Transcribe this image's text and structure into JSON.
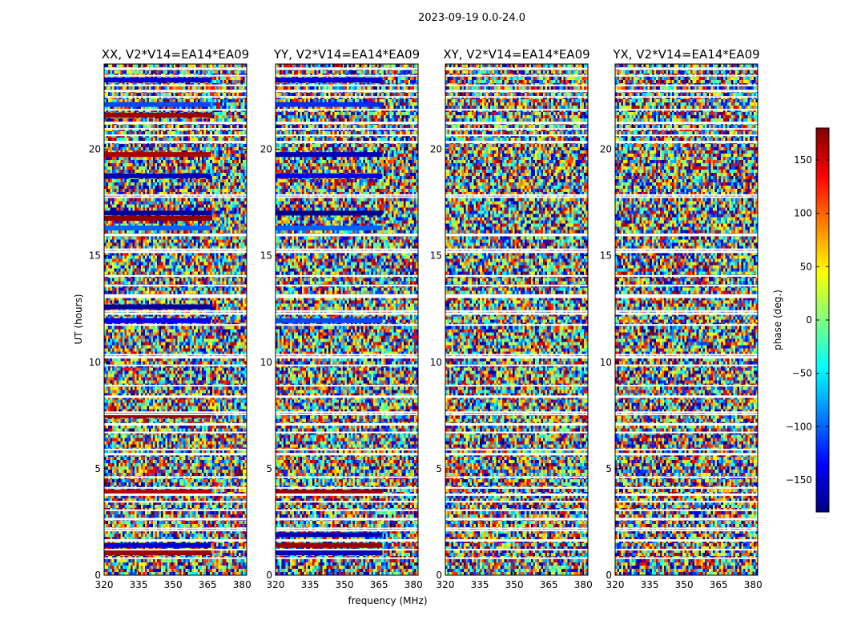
{
  "figure": {
    "title": "2023-09-19 0.0-24.0",
    "xlabel": "frequency (MHz)",
    "ylabel": "UT (hours)",
    "colorbar_label": "phase (deg.)",
    "colorbar_footer": "......"
  },
  "chart_data": {
    "type": "heatmap",
    "title": "2023-09-19 0.0-24.0",
    "xlabel": "frequency (MHz)",
    "ylabel": "UT (hours)",
    "xlim": [
      320,
      382
    ],
    "ylim": [
      0,
      24
    ],
    "xticks": [
      320,
      335,
      350,
      365,
      380
    ],
    "yticks": [
      0,
      5,
      10,
      15,
      20
    ],
    "colormap": "jet",
    "colorbar": {
      "label": "phase (deg.)",
      "range": [
        -180,
        180
      ],
      "ticks": [
        -150,
        -100,
        -50,
        0,
        50,
        100,
        150
      ]
    },
    "grid": false,
    "panels": [
      {
        "title": "XX, V2*V14=EA14*EA09",
        "coherent_bands": [
          {
            "ut": 23.25,
            "phase": -150
          },
          {
            "ut": 22.1,
            "phase": -110
          },
          {
            "ut": 21.6,
            "phase": 170
          },
          {
            "ut": 19.75,
            "phase": 165
          },
          {
            "ut": 18.75,
            "phase": -160
          },
          {
            "ut": 17.0,
            "phase": -170
          },
          {
            "ut": 16.75,
            "phase": 175
          },
          {
            "ut": 16.3,
            "phase": -100
          },
          {
            "ut": 12.6,
            "phase": -170
          },
          {
            "ut": 11.95,
            "phase": -140
          },
          {
            "ut": 7.5,
            "phase": 170
          },
          {
            "ut": 3.9,
            "phase": 160
          },
          {
            "ut": 1.4,
            "phase": -150
          },
          {
            "ut": 1.05,
            "phase": 170
          }
        ]
      },
      {
        "title": "YY, V2*V14=EA14*EA09",
        "coherent_bands": [
          {
            "ut": 23.25,
            "phase": -150
          },
          {
            "ut": 22.1,
            "phase": -120
          },
          {
            "ut": 19.75,
            "phase": -160
          },
          {
            "ut": 18.75,
            "phase": -140
          },
          {
            "ut": 17.0,
            "phase": -175
          },
          {
            "ut": 16.3,
            "phase": -100
          },
          {
            "ut": 11.95,
            "phase": -110
          },
          {
            "ut": 3.9,
            "phase": 170
          },
          {
            "ut": 1.9,
            "phase": -160
          },
          {
            "ut": 1.4,
            "phase": 170
          },
          {
            "ut": 1.05,
            "phase": -160
          }
        ]
      },
      {
        "title": "XY, V2*V14=EA14*EA09",
        "coherent_bands": []
      },
      {
        "title": "YX, V2*V14=EA14*EA09",
        "coherent_bands": []
      }
    ],
    "flagged_ut": [
      23.8,
      23.45,
      23.0,
      22.75,
      22.45,
      21.85,
      21.25,
      20.95,
      20.65,
      20.35,
      17.85,
      17.75,
      16.0,
      15.95,
      15.3,
      15.2,
      14.05,
      13.6,
      13.15,
      13.05,
      12.4,
      12.3,
      11.75,
      10.35,
      10.25,
      9.85,
      8.9,
      8.4,
      7.65,
      7.55,
      7.1,
      6.7,
      5.9,
      5.7,
      4.6,
      4.1,
      3.8,
      3.45,
      3.05,
      2.65,
      2.2,
      2.1,
      1.65,
      1.2,
      0.8
    ]
  }
}
